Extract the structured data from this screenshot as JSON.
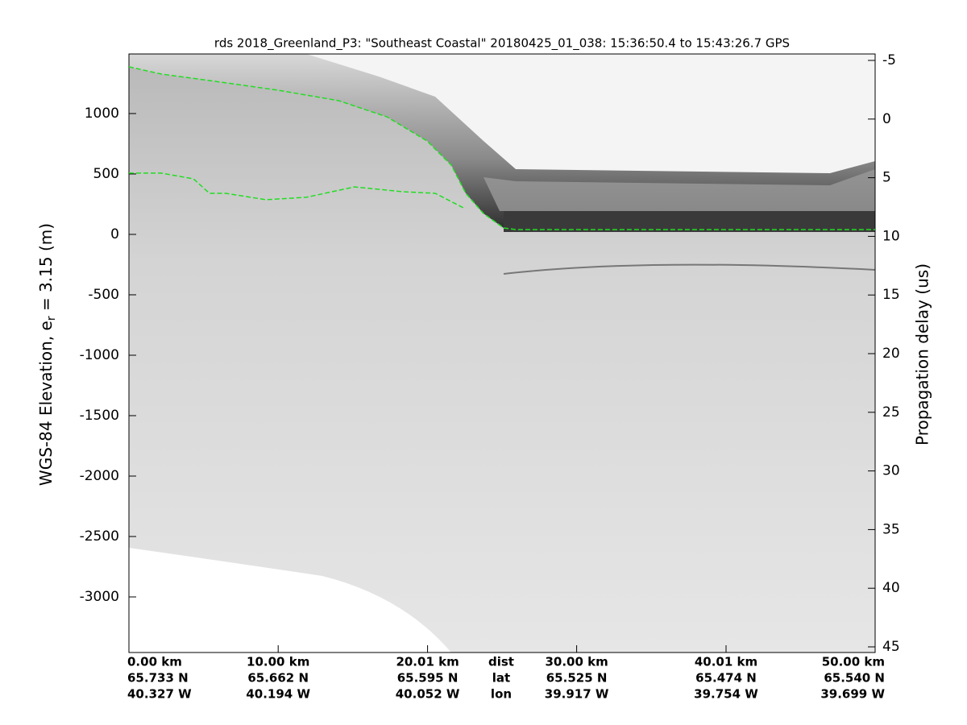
{
  "chart_data": {
    "type": "echogram",
    "title": "rds 2018_Greenland_P3: \"Southeast Coastal\"  20180425_01_038: 15:36:50.4 to 15:43:26.7 GPS",
    "ylabel_parts": [
      "WGS-84 Elevation, e",
      "r",
      " = 3.15 (m)"
    ],
    "y2label": "Propagation delay (us)",
    "ylim": [
      -3460,
      1493
    ],
    "yticks": [
      -3000,
      -2500,
      -2000,
      -1500,
      -1000,
      -500,
      0,
      500,
      1000
    ],
    "y2lim": [
      -5.55,
      45.48
    ],
    "y2_reversed": true,
    "y2ticks": [
      -5,
      0,
      5,
      10,
      15,
      20,
      25,
      30,
      35,
      40,
      45
    ],
    "xlim": [
      0,
      50
    ],
    "xticks": [
      {
        "value": 0,
        "label": "0.00 km"
      },
      {
        "value": 10,
        "label": "10.00 km"
      },
      {
        "value": 20.01,
        "label": "20.01 km"
      },
      {
        "value": 30,
        "label": "30.00 km"
      },
      {
        "value": 40.01,
        "label": "40.01 km"
      },
      {
        "value": 50,
        "label": "50.00 km"
      }
    ],
    "row_names": [
      "dist",
      "lat",
      "lon"
    ],
    "lat_labels": [
      "65.733 N",
      "65.662 N",
      "65.595 N",
      "65.525 N",
      "65.474 N",
      "65.540 N"
    ],
    "lon_labels": [
      "40.327 W",
      "40.194 W",
      "40.052 W",
      "39.917 W",
      "39.754 W",
      "39.699 W"
    ],
    "series": [
      {
        "color": "#22dd22",
        "x": [
          0,
          2.16,
          5.4,
          10.0,
          14.04,
          17.28,
          19.98,
          21.6,
          22.57,
          23.76,
          25.11,
          25.92,
          50
        ],
        "values": [
          1387,
          1327,
          1273,
          1193,
          1107,
          973,
          773,
          573,
          340,
          173,
          53,
          40,
          40
        ]
      },
      {
        "color": "#22dd22",
        "x": [
          0,
          2.16,
          4.32,
          5.4,
          6.48,
          9.18,
          11.88,
          15.12,
          18.36,
          20.52,
          22.41
        ],
        "values": [
          507,
          507,
          460,
          340,
          340,
          287,
          307,
          393,
          353,
          340,
          220
        ]
      }
    ]
  }
}
